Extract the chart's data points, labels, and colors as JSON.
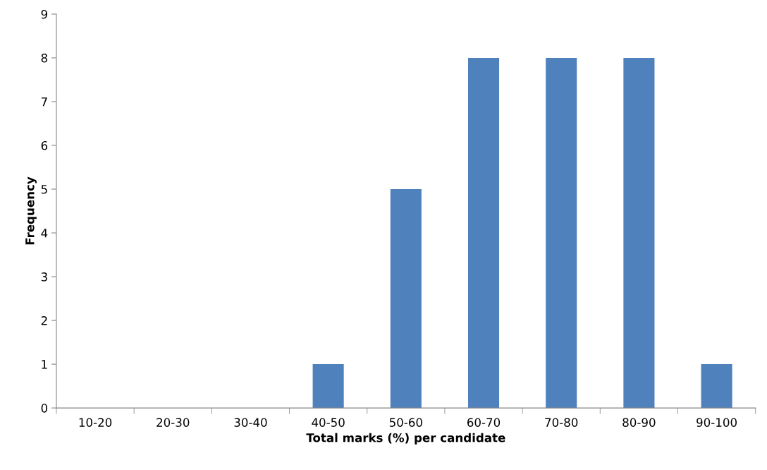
{
  "chart_data": {
    "type": "bar",
    "xlabel": "Total marks (%) per candidate",
    "ylabel": "Frequency",
    "categories": [
      "10-20",
      "20-30",
      "30-40",
      "40-50",
      "50-60",
      "60-70",
      "70-80",
      "80-90",
      "90-100"
    ],
    "values": [
      0,
      0,
      0,
      1,
      5,
      8,
      8,
      8,
      1
    ],
    "color": "#4f81bd",
    "ylim": [
      0,
      9
    ],
    "yticks": [
      0,
      1,
      2,
      3,
      4,
      5,
      6,
      7,
      8,
      9
    ],
    "grid": false,
    "legend": false
  }
}
